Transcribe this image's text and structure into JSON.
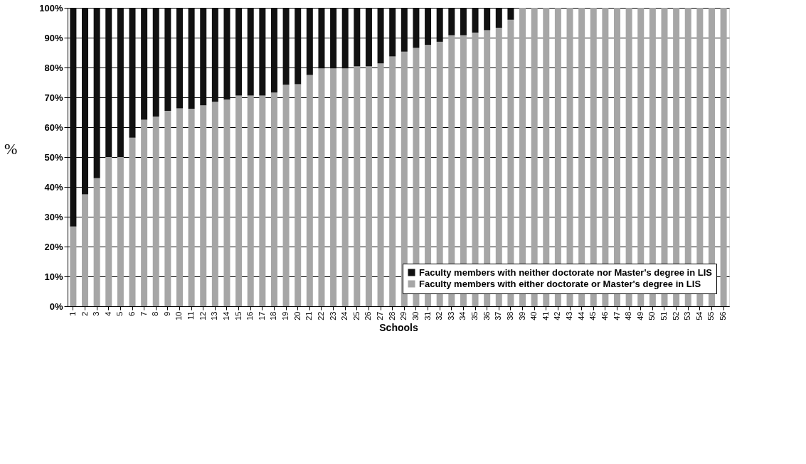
{
  "chart_data": {
    "type": "bar",
    "stacked": true,
    "xlabel": "Schools",
    "ylabel": "%",
    "categories": [
      "1",
      "2",
      "3",
      "4",
      "5",
      "6",
      "7",
      "8",
      "9",
      "10",
      "11",
      "12",
      "13",
      "14",
      "15",
      "16",
      "17",
      "18",
      "19",
      "20",
      "21",
      "22",
      "23",
      "24",
      "25",
      "26",
      "27",
      "28",
      "29",
      "30",
      "31",
      "32",
      "33",
      "34",
      "35",
      "36",
      "37",
      "38",
      "39",
      "40",
      "41",
      "42",
      "43",
      "44",
      "45",
      "46",
      "47",
      "48",
      "49",
      "50",
      "51",
      "52",
      "53",
      "54",
      "55",
      "56"
    ],
    "series": [
      {
        "name": "Faculty members with either doctorate or Master's degree in LIS",
        "color": "#a6a6a6",
        "values": [
          26.7,
          37.5,
          42.9,
          50,
          50,
          56.5,
          62.5,
          63.6,
          65.5,
          66.3,
          66.2,
          67.3,
          68.5,
          69.3,
          70.6,
          70.6,
          70.6,
          71.6,
          74.2,
          74.4,
          77.5,
          79.7,
          79.7,
          79.7,
          80.4,
          80.4,
          81.4,
          83.7,
          85.3,
          86.6,
          87.6,
          88.6,
          90.8,
          90.8,
          91.7,
          92.5,
          93.3,
          96,
          100,
          100,
          100,
          100,
          100,
          100,
          100,
          100,
          100,
          100,
          100,
          100,
          100,
          100,
          100,
          100,
          100,
          100
        ]
      },
      {
        "name": "Faculty members with neither doctorate nor Master's degree in LIS",
        "color": "#111111",
        "values": [
          73.3,
          62.5,
          57.1,
          50,
          50,
          43.5,
          37.5,
          36.4,
          34.5,
          33.7,
          33.8,
          32.7,
          31.5,
          30.7,
          29.4,
          29.4,
          29.4,
          28.4,
          25.8,
          25.6,
          22.5,
          20.3,
          20.3,
          20.3,
          19.6,
          19.6,
          18.6,
          16.3,
          14.7,
          13.4,
          12.4,
          11.4,
          9.2,
          9.2,
          8.3,
          7.5,
          6.7,
          4,
          0,
          0,
          0,
          0,
          0,
          0,
          0,
          0,
          0,
          0,
          0,
          0,
          0,
          0,
          0,
          0,
          0,
          0
        ]
      }
    ],
    "ylim": [
      0,
      100
    ],
    "yticks": [
      {
        "value": 0,
        "label": "0%"
      },
      {
        "value": 10,
        "label": "10%"
      },
      {
        "value": 20,
        "label": "20%"
      },
      {
        "value": 30,
        "label": "30%"
      },
      {
        "value": 40,
        "label": "40%"
      },
      {
        "value": 50,
        "label": "50%"
      },
      {
        "value": 60,
        "label": "60%"
      },
      {
        "value": 70,
        "label": "70%"
      },
      {
        "value": 80,
        "label": "80%"
      },
      {
        "value": 90,
        "label": "90%"
      },
      {
        "value": 100,
        "label": "100%"
      }
    ],
    "grid": "y",
    "legend": "bottom right"
  }
}
